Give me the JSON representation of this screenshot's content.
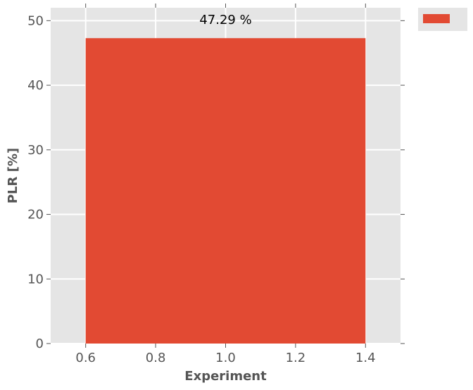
{
  "chart_data": {
    "type": "bar",
    "title": "",
    "xlabel": "Experiment",
    "ylabel": "PLR [%]",
    "xlim": [
      0.5,
      1.5
    ],
    "ylim": [
      0,
      52
    ],
    "xticks": [
      0.6,
      0.8,
      1.0,
      1.2,
      1.4
    ],
    "xtick_labels": [
      "0.6",
      "0.8",
      "1.0",
      "1.2",
      "1.4"
    ],
    "yticks": [
      0,
      10,
      20,
      30,
      40,
      50
    ],
    "ytick_labels": [
      "0",
      "10",
      "20",
      "30",
      "40",
      "50"
    ],
    "bars": [
      {
        "x_start": 0.6,
        "x_end": 1.4,
        "value": 47.29,
        "label": "47.29 %"
      }
    ],
    "grid": true,
    "legend": {
      "placement": "outside-top-right",
      "entries": [
        ""
      ]
    },
    "colors": {
      "bar": "#E24A33",
      "plot_background": "#E5E5E5",
      "grid": "#FFFFFF",
      "tick_text": "#555555",
      "label_text": "#555555",
      "data_label_text": "#000000",
      "legend_background": "#E5E5E5"
    }
  }
}
